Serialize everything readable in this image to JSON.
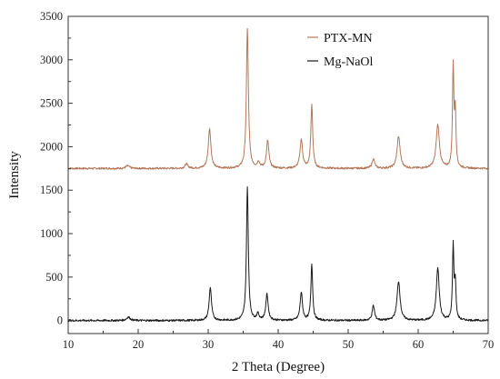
{
  "chart_data": {
    "type": "line",
    "title": "",
    "xlabel": "2 Theta (Degree)",
    "ylabel": "Intensity",
    "xlim": [
      10,
      70
    ],
    "ylim": [
      -150,
      3500
    ],
    "xticks": [
      10,
      20,
      30,
      40,
      50,
      60,
      70
    ],
    "yticks": [
      0,
      500,
      1000,
      1500,
      2000,
      2500,
      3000,
      3500
    ],
    "grid": false,
    "legend_position": "top-right",
    "series": [
      {
        "name": "PTX-MN",
        "color": "#b5775a",
        "baseline": 1750,
        "peaks": [
          [
            18.5,
            30,
            0.3
          ],
          [
            26.9,
            50,
            0.25
          ],
          [
            30.2,
            460,
            0.22
          ],
          [
            35.6,
            1610,
            0.17
          ],
          [
            37.2,
            70,
            0.2
          ],
          [
            38.5,
            320,
            0.2
          ],
          [
            43.3,
            330,
            0.22
          ],
          [
            44.8,
            730,
            0.16
          ],
          [
            53.6,
            110,
            0.22
          ],
          [
            57.2,
            370,
            0.26
          ],
          [
            62.8,
            500,
            0.28
          ],
          [
            65.0,
            1160,
            0.12
          ],
          [
            65.3,
            620,
            0.12
          ]
        ]
      },
      {
        "name": "Mg-NaOl",
        "color": "#1a1a1a",
        "baseline": 0,
        "peaks": [
          [
            18.6,
            40,
            0.3
          ],
          [
            30.3,
            380,
            0.2
          ],
          [
            35.6,
            1530,
            0.16
          ],
          [
            37.1,
            70,
            0.2
          ],
          [
            38.4,
            300,
            0.2
          ],
          [
            43.3,
            320,
            0.2
          ],
          [
            44.8,
            650,
            0.15
          ],
          [
            53.6,
            170,
            0.2
          ],
          [
            57.2,
            450,
            0.26
          ],
          [
            62.8,
            600,
            0.25
          ],
          [
            65.0,
            850,
            0.12
          ],
          [
            65.3,
            420,
            0.12
          ]
        ]
      }
    ]
  }
}
